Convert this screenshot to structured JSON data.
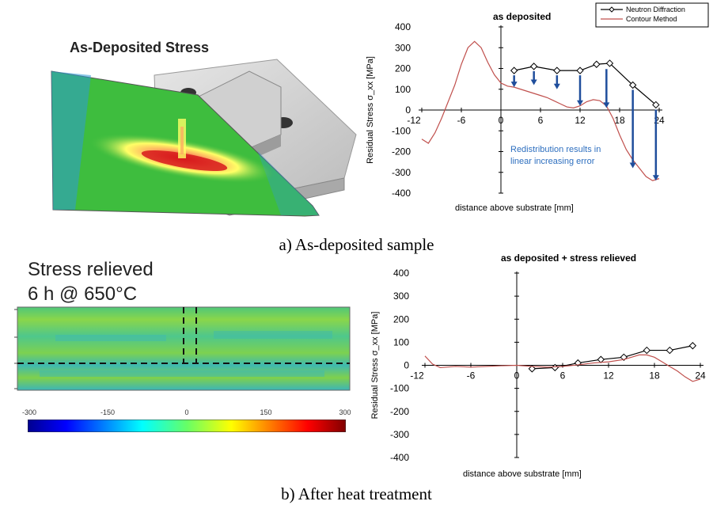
{
  "panel_a": {
    "figure_3d_title": "As-Deposited Stress",
    "caption": "a) As-deposited sample"
  },
  "panel_b": {
    "map_title_line1": "Stress relieved",
    "map_title_line2": "6 h @ 650°C",
    "colorbar_ticks": [
      "-300",
      "-150",
      "0",
      "150",
      "300"
    ],
    "caption": "b) After heat treatment"
  },
  "chart_data": [
    {
      "type": "line",
      "title": "as deposited",
      "xlabel": "distance above substrate [mm]",
      "ylabel": "Residual Stress σ_xx [MPa]",
      "xlim": [
        -12,
        24
      ],
      "ylim": [
        -400,
        400
      ],
      "xticks": [
        "-12",
        "-6",
        "0",
        "6",
        "12",
        "18",
        "24"
      ],
      "yticks": [
        "400",
        "300",
        "200",
        "100",
        "0",
        "-100",
        "-200",
        "-300",
        "-400"
      ],
      "legend_position": "top-right",
      "series": [
        {
          "name": "Neutron Diffraction",
          "color": "#000000",
          "marker": "diamond",
          "x": [
            2,
            5,
            8.5,
            12,
            14.5,
            16.5,
            20,
            23.5
          ],
          "y": [
            190,
            210,
            190,
            190,
            220,
            225,
            120,
            25
          ]
        },
        {
          "name": "Contour Method",
          "color": "#c0504d",
          "x": [
            -12,
            -11,
            -10,
            -9,
            -8,
            -7,
            -6,
            -5,
            -4,
            -3,
            -2,
            -1,
            0,
            1,
            2,
            3,
            4,
            5,
            6,
            7,
            8,
            9,
            10,
            11,
            12,
            13,
            14,
            15,
            16,
            17,
            18,
            19,
            20,
            21,
            22,
            23,
            24
          ],
          "y": [
            -140,
            -160,
            -110,
            -40,
            40,
            120,
            220,
            300,
            330,
            300,
            230,
            170,
            130,
            115,
            110,
            100,
            90,
            80,
            70,
            60,
            45,
            30,
            15,
            10,
            20,
            40,
            50,
            45,
            20,
            -40,
            -120,
            -190,
            -240,
            -280,
            -320,
            -340,
            -330
          ]
        }
      ],
      "annotation": "Redistribution results in linear increasing error",
      "arrows": [
        {
          "x": 2,
          "from": 190,
          "to": 110
        },
        {
          "x": 5,
          "from": 210,
          "to": 120
        },
        {
          "x": 8.5,
          "from": 190,
          "to": 100
        },
        {
          "x": 12,
          "from": 190,
          "to": 20
        },
        {
          "x": 16,
          "from": 220,
          "to": 10
        },
        {
          "x": 20,
          "from": 120,
          "to": -280
        },
        {
          "x": 23.5,
          "from": 25,
          "to": -340
        }
      ]
    },
    {
      "type": "line",
      "title": "as deposited + stress relieved",
      "xlabel": "distance above substrate [mm]",
      "ylabel": "Residual Stress σ_xx [MPa]",
      "xlim": [
        -12,
        24
      ],
      "ylim": [
        -400,
        400
      ],
      "xticks": [
        "-12",
        "-6",
        "0",
        "6",
        "12",
        "18",
        "24"
      ],
      "yticks": [
        "400",
        "300",
        "200",
        "100",
        "0",
        "-100",
        "-200",
        "-300",
        "-400"
      ],
      "series": [
        {
          "color": "#000000",
          "marker": "diamond",
          "x": [
            2,
            5,
            8,
            11,
            14,
            17,
            20,
            23
          ],
          "y": [
            -15,
            -10,
            10,
            25,
            35,
            65,
            65,
            85
          ]
        },
        {
          "color": "#c0504d",
          "x": [
            -12,
            -11,
            -10,
            -8,
            -6,
            -4,
            -2,
            0,
            2,
            4,
            6,
            8,
            10,
            12,
            14,
            15,
            16,
            17,
            18,
            19,
            20,
            21,
            22,
            23,
            24
          ],
          "y": [
            40,
            5,
            -10,
            -5,
            -8,
            -5,
            -2,
            0,
            -5,
            -8,
            -5,
            2,
            10,
            15,
            25,
            35,
            45,
            45,
            35,
            15,
            -5,
            -25,
            -50,
            -70,
            -60
          ]
        }
      ]
    }
  ]
}
